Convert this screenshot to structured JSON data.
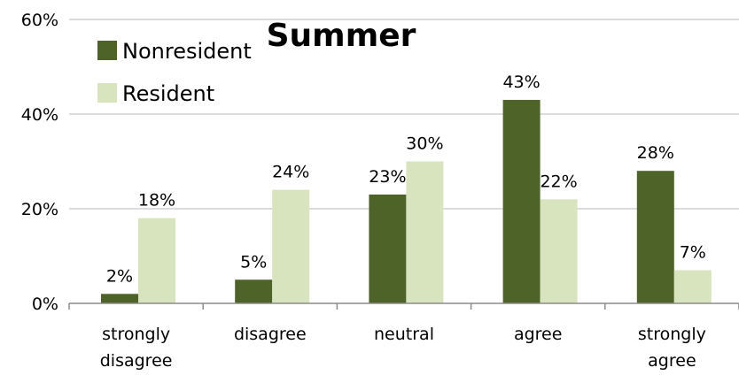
{
  "chart_data": {
    "type": "bar",
    "title": "Summer",
    "categories": [
      [
        "strongly",
        "disagree"
      ],
      [
        "disagree"
      ],
      [
        "neutral"
      ],
      [
        "agree"
      ],
      [
        "strongly",
        "agree"
      ]
    ],
    "series": [
      {
        "name": "Nonresident",
        "color": "#4e6328",
        "values": [
          2,
          5,
          23,
          43,
          28
        ],
        "labels": [
          "2%",
          "5%",
          "23%",
          "43%",
          "28%"
        ]
      },
      {
        "name": "Resident",
        "color": "#d7e4bd",
        "values": [
          18,
          24,
          30,
          22,
          7
        ],
        "labels": [
          "18%",
          "24%",
          "30%",
          "22%",
          "7%"
        ]
      }
    ],
    "yticks": [
      {
        "value": 0,
        "label": "0%"
      },
      {
        "value": 20,
        "label": "20%"
      },
      {
        "value": 40,
        "label": "40%"
      },
      {
        "value": 60,
        "label": "60%"
      }
    ],
    "ylim": [
      0,
      60
    ],
    "grid": true,
    "legend_position": "top-left"
  }
}
